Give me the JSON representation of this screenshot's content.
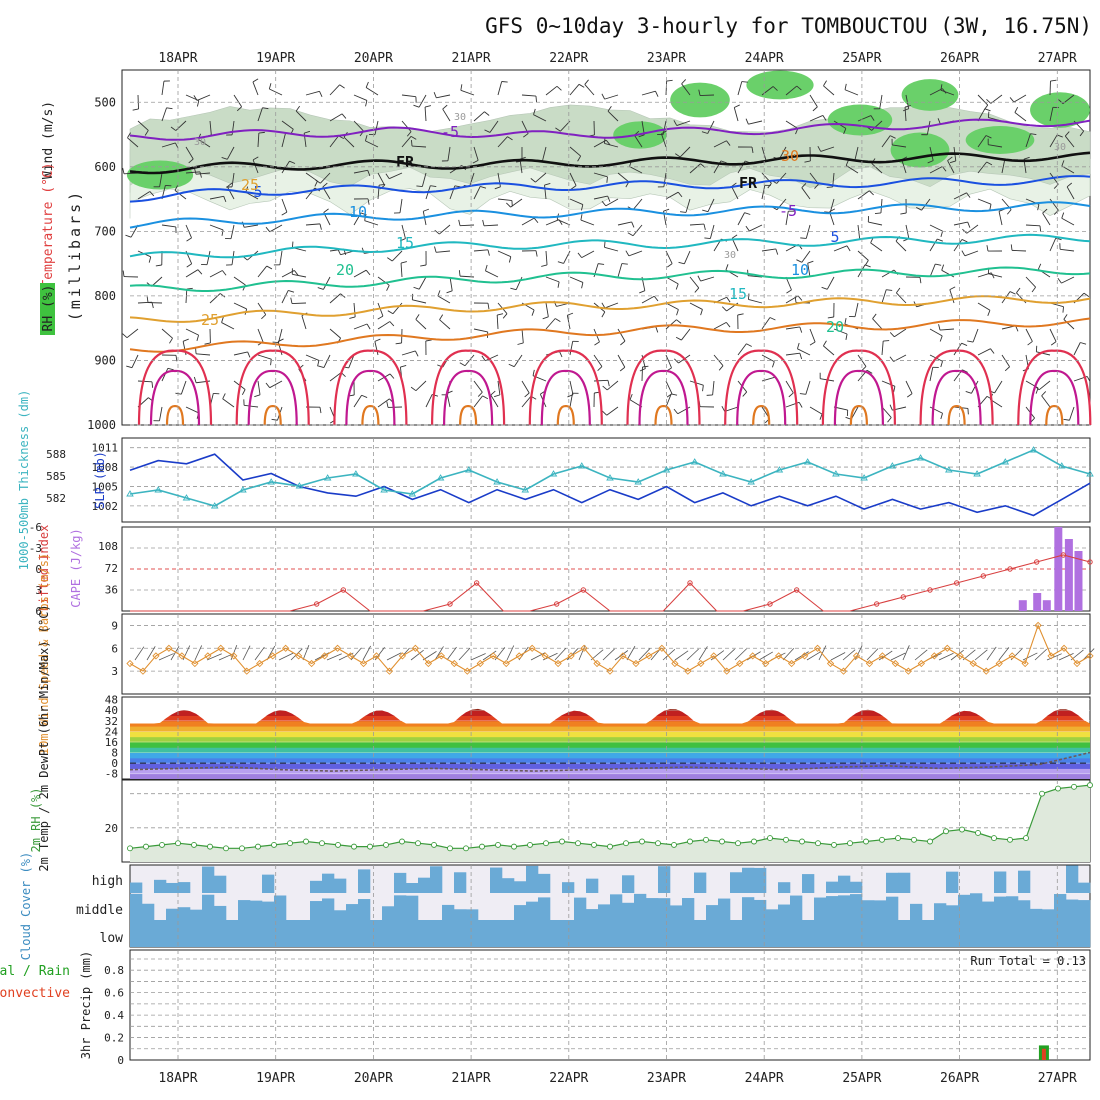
{
  "title": "GFS 0~10day 3-hourly for TOMBOUCTOU (3W, 16.75N)",
  "colors": {
    "grid": "#9a9a9a",
    "rh_fill": "#dfe9dc",
    "rh_line": "#3a9a3a",
    "cloud": "#6aaad6",
    "cloud_bg": "#efedf4",
    "slp": "#1a3cc8",
    "thickness": "#3cb4c0",
    "lifted": "#d84040",
    "cape": "#b070e0",
    "wind": "#e09030",
    "rain": "#22a022",
    "conv": "#e04020"
  },
  "chart_data": [
    {
      "type": "heatmap",
      "name": "upper-air",
      "xlabels_top": [
        "18APR",
        "19APR",
        "20APR",
        "21APR",
        "22APR",
        "23APR",
        "24APR",
        "25APR",
        "26APR",
        "27APR"
      ],
      "ylabel": "(millibars)",
      "side_labels": [
        "Wind (m/s)",
        "Temperature (°C)",
        "RH (%)"
      ],
      "yticks": [
        500,
        600,
        700,
        800,
        900,
        1000
      ],
      "ylim": [
        1000,
        450
      ],
      "isotherms": [
        {
          "label": "-5",
          "level": [
            555,
            550,
            548,
            545,
            548,
            552,
            546,
            544,
            540,
            535,
            532,
            530
          ]
        },
        {
          "label": "FR",
          "level": [
            605,
            600,
            598,
            596,
            597,
            594,
            592,
            590,
            588,
            586,
            585,
            584
          ]
        },
        {
          "label": "5",
          "level": [
            648,
            640,
            636,
            634,
            632,
            630,
            628,
            627,
            626,
            624,
            622,
            620
          ]
        },
        {
          "label": "10",
          "level": [
            690,
            684,
            680,
            676,
            674,
            672,
            670,
            668,
            666,
            664,
            662,
            660
          ]
        },
        {
          "label": "15",
          "level": [
            740,
            735,
            730,
            725,
            722,
            720,
            720,
            718,
            716,
            714,
            712,
            710
          ]
        },
        {
          "label": "20",
          "level": [
            790,
            786,
            782,
            778,
            774,
            770,
            768,
            767,
            766,
            764,
            762,
            760
          ]
        },
        {
          "label": "25",
          "level": [
            838,
            832,
            826,
            822,
            818,
            815,
            814,
            812,
            810,
            808,
            806,
            804
          ]
        },
        {
          "label": "30",
          "level": [
            882,
            878,
            872,
            866,
            860,
            856,
            852,
            850,
            848,
            845,
            842,
            840
          ]
        }
      ],
      "contour_labels": [
        "-5",
        "FR",
        "5",
        "10",
        "15",
        "20",
        "25",
        "30",
        "FR",
        "-5",
        "5",
        "10",
        "15",
        "20",
        "25",
        "30",
        "30",
        "30",
        "30"
      ]
    },
    {
      "type": "line",
      "name": "slp-thickness",
      "ylabel_left": "1000-500mb Thickness (dm)",
      "ylabel_right": "SLP (mb)",
      "left_ticks": [
        "588",
        "585",
        "582"
      ],
      "right_ticks": [
        "1011",
        "1008",
        "1005",
        "1002"
      ],
      "series": [
        {
          "name": "SLP",
          "values": [
            1007.5,
            1009,
            1008.5,
            1010,
            1006,
            1007,
            1005,
            1004,
            1003.5,
            1005,
            1003,
            1004.5,
            1002.5,
            1004.5,
            1003,
            1004.5,
            1002.5,
            1004.5,
            1003,
            1005,
            1002.5,
            1004,
            1002,
            1003.5,
            1002,
            1003.5,
            1001.5,
            1003,
            1001.5,
            1002.5,
            1001,
            1002,
            1000.5,
            1003,
            1005.5
          ]
        },
        {
          "name": "Thickness",
          "values": [
            582.5,
            583,
            582,
            581,
            583,
            584,
            583.5,
            584.5,
            585,
            583,
            582.5,
            584.5,
            585.5,
            584,
            583,
            585,
            586,
            584.5,
            584,
            585.5,
            586.5,
            585,
            584,
            585.5,
            586.5,
            585,
            584.5,
            586,
            587,
            585.5,
            585,
            586.5,
            588,
            586,
            585
          ]
        }
      ]
    },
    {
      "type": "bar",
      "name": "lifted-cape",
      "ylabel_left": "Lifted Index",
      "ylabel_right": "CAPE (J/kg)",
      "left_ticks": [
        "-6",
        "-3",
        "0",
        "3",
        "6"
      ],
      "right_ticks": [
        "108",
        "72",
        "36"
      ],
      "lifted_index": [
        6,
        6,
        6,
        6,
        6,
        6,
        6,
        5,
        3,
        6,
        6,
        6,
        5,
        2,
        6,
        6,
        5,
        3,
        6,
        6,
        6,
        2,
        6,
        6,
        5,
        3,
        6,
        6,
        5,
        4,
        3,
        2,
        1,
        0,
        -1,
        -2,
        -1
      ],
      "cape": {
        "x": [
          0.93,
          0.945,
          0.955,
          0.967,
          0.978,
          0.988
        ],
        "values": [
          18,
          30,
          18,
          140,
          120,
          100
        ]
      }
    },
    {
      "type": "line",
      "name": "10m-wind",
      "ylabel": "10m Wind Speed & Barbs (m/s)",
      "yticks": [
        "9",
        "6",
        "3"
      ],
      "values": [
        4,
        3,
        5,
        6,
        5,
        4,
        5,
        6,
        5,
        3,
        4,
        5,
        6,
        5,
        4,
        5,
        6,
        5,
        4,
        5,
        3,
        5,
        6,
        4,
        5,
        4,
        3,
        4,
        5,
        4,
        5,
        6,
        5,
        4,
        5,
        6,
        4,
        3,
        5,
        4,
        5,
        6,
        4,
        3,
        4,
        5,
        3,
        4,
        5,
        4,
        5,
        4,
        5,
        6,
        4,
        3,
        5,
        4,
        5,
        4,
        3,
        4,
        5,
        6,
        5,
        4,
        3,
        4,
        5,
        4,
        9,
        5,
        6,
        4,
        5
      ]
    },
    {
      "type": "area",
      "name": "2m-temp",
      "ylabel": "2m Temp / 2m DewPt (6hr Min/Max) (°C)",
      "yticks": [
        "48",
        "40",
        "32",
        "24",
        "16",
        "8",
        "0",
        "-8"
      ],
      "temp_max": [
        38,
        40,
        41,
        40,
        38,
        40,
        41,
        41,
        38,
        40,
        41,
        41,
        39,
        41,
        41,
        40,
        39,
        40,
        41,
        41
      ],
      "dewpoint": [
        -5,
        -4,
        -3,
        -5,
        -6,
        -5,
        -4,
        -5,
        -6,
        -5,
        -4,
        -3,
        -4,
        -5,
        -3,
        -2,
        -4,
        -3,
        -1,
        8
      ]
    },
    {
      "type": "line",
      "name": "2m-rh",
      "ylabel": "2m RH (%)",
      "yticks": [
        "20"
      ],
      "values": [
        8,
        9,
        10,
        11,
        10,
        9,
        8,
        8,
        9,
        10,
        11,
        12,
        11,
        10,
        9,
        9,
        10,
        12,
        11,
        10,
        8,
        8,
        9,
        10,
        9,
        10,
        11,
        12,
        11,
        10,
        9,
        11,
        12,
        11,
        10,
        12,
        13,
        12,
        11,
        12,
        14,
        13,
        12,
        11,
        10,
        11,
        12,
        13,
        14,
        13,
        12,
        18,
        19,
        17,
        14,
        13,
        14,
        40,
        43,
        44,
        45
      ]
    },
    {
      "type": "heatmap",
      "name": "cloud-cover",
      "ylabel": "Cloud Cover (%)",
      "rows": [
        "high",
        "middle",
        "low"
      ]
    },
    {
      "type": "bar",
      "name": "precip",
      "ylabel": "3hr Precip (mm)",
      "side_labels": [
        "Total / Rain",
        "Convective"
      ],
      "yticks": [
        "0.8",
        "0.6",
        "0.4",
        "0.2",
        "0"
      ],
      "ytick_top": "0.8",
      "run_total": "Run Total = 0.13",
      "bars": [
        {
          "x": 0.952,
          "total": 0.13,
          "conv": 0.1
        }
      ],
      "xlabels_bottom": [
        "18APR",
        "19APR",
        "20APR",
        "21APR",
        "22APR",
        "23APR",
        "24APR",
        "25APR",
        "26APR",
        "27APR"
      ]
    }
  ]
}
